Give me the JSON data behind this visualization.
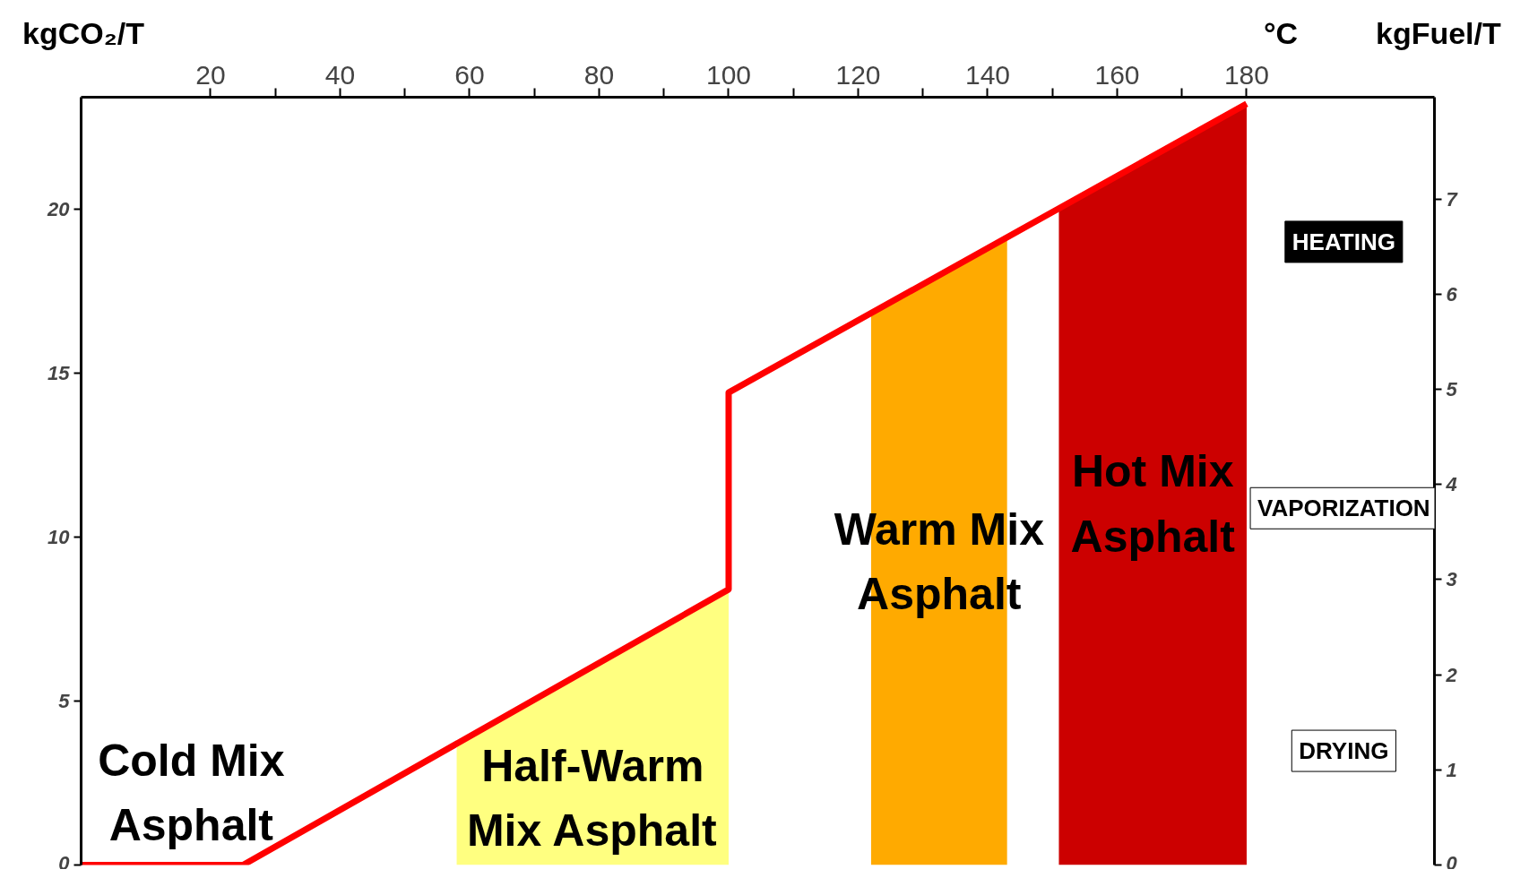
{
  "chart_data": {
    "type": "line",
    "xlabel": "°C",
    "ylabel": "kgCO₂/T",
    "y2label": "kgFuel/T",
    "xlim": [
      0,
      209
    ],
    "ylim": [
      0,
      23.4
    ],
    "y2lim": [
      0,
      8.07
    ],
    "xticks": [
      20,
      {
        "value": 30,
        "label": null
      },
      40,
      {
        "value": 50,
        "label": null
      },
      60,
      {
        "value": 70,
        "label": null
      },
      80,
      {
        "value": 90,
        "label": null
      },
      100,
      {
        "value": 110,
        "label": null
      },
      120,
      {
        "value": 130,
        "label": null
      },
      140,
      {
        "value": 150,
        "label": null
      },
      160,
      {
        "value": 170,
        "label": null
      },
      180
    ],
    "yticks": [
      0,
      5,
      10,
      15,
      20
    ],
    "y2ticks": [
      0,
      1,
      2,
      3,
      4,
      5,
      6,
      7
    ],
    "grid": false,
    "series": [
      {
        "type": "area",
        "name": "Half-Warm Mix Asphalt",
        "color": "#ffff80",
        "x": [
          58,
          100
        ],
        "values": [
          3.7,
          8.4
        ]
      },
      {
        "type": "area",
        "name": "Warm Mix Asphalt",
        "color": "#ffaa00",
        "x": [
          122,
          143
        ],
        "values": [
          16.8,
          19.1
        ]
      },
      {
        "type": "area",
        "name": "Hot Mix Asphalt",
        "color": "#cc0000",
        "x": [
          151,
          180
        ],
        "values": [
          20.0,
          23.2
        ]
      },
      {
        "color": "#ff0000",
        "x": [
          0,
          25,
          100,
          100,
          180
        ],
        "values": [
          0,
          0,
          8.4,
          14.4,
          23.2
        ]
      }
    ],
    "annotations": [
      "Cold Mix Asphalt",
      "HEATING",
      "VAPORIZATION",
      "DRYING"
    ]
  }
}
